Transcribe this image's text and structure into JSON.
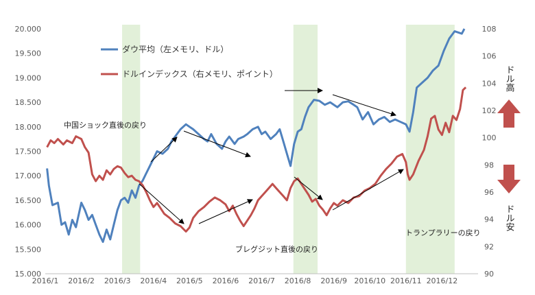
{
  "chart_data": {
    "type": "line",
    "x_labels": [
      "2016/1",
      "2016/2",
      "2016/3",
      "2016/4",
      "2016/5",
      "2016/6",
      "2016/7",
      "2016/8",
      "2016/9",
      "2016/10",
      "2016/11",
      "2016/12"
    ],
    "y_left": {
      "ticks": [
        "15.000",
        "15.500",
        "16.000",
        "16.500",
        "17.000",
        "17.500",
        "18.000",
        "18.500",
        "19.000",
        "19.500",
        "20.000"
      ],
      "min": 15000,
      "max": 20000
    },
    "y_right": {
      "ticks": [
        "90",
        "92",
        "94",
        "96",
        "98",
        "100",
        "102",
        "104",
        "106",
        "108"
      ],
      "min": 90,
      "max": 108
    },
    "highlight_bands": [
      {
        "from": 2.13,
        "to": 2.63
      },
      {
        "from": 6.88,
        "to": 7.55
      },
      {
        "from": 10.0,
        "to": 11.35
      }
    ],
    "series": [
      {
        "name": "ダウ平均（左メモリ、ドル）",
        "axis": "left",
        "color": "#4f81bd",
        "points": [
          [
            0.05,
            17150
          ],
          [
            0.1,
            16800
          ],
          [
            0.2,
            16400
          ],
          [
            0.35,
            16450
          ],
          [
            0.45,
            16000
          ],
          [
            0.55,
            16050
          ],
          [
            0.65,
            15800
          ],
          [
            0.75,
            16100
          ],
          [
            0.85,
            15950
          ],
          [
            1.0,
            16450
          ],
          [
            1.1,
            16300
          ],
          [
            1.2,
            16100
          ],
          [
            1.3,
            16200
          ],
          [
            1.4,
            16000
          ],
          [
            1.5,
            15800
          ],
          [
            1.6,
            15650
          ],
          [
            1.7,
            15900
          ],
          [
            1.8,
            15700
          ],
          [
            1.9,
            16000
          ],
          [
            2.0,
            16300
          ],
          [
            2.1,
            16500
          ],
          [
            2.2,
            16550
          ],
          [
            2.3,
            16450
          ],
          [
            2.4,
            16700
          ],
          [
            2.5,
            16550
          ],
          [
            2.6,
            16800
          ],
          [
            2.7,
            16900
          ],
          [
            2.8,
            17050
          ],
          [
            2.9,
            17200
          ],
          [
            3.0,
            17350
          ],
          [
            3.1,
            17500
          ],
          [
            3.25,
            17450
          ],
          [
            3.4,
            17550
          ],
          [
            3.5,
            17700
          ],
          [
            3.6,
            17800
          ],
          [
            3.75,
            17950
          ],
          [
            3.9,
            18050
          ],
          [
            4.0,
            18000
          ],
          [
            4.1,
            17950
          ],
          [
            4.25,
            17850
          ],
          [
            4.4,
            17750
          ],
          [
            4.5,
            17700
          ],
          [
            4.6,
            17850
          ],
          [
            4.75,
            17650
          ],
          [
            4.9,
            17550
          ],
          [
            5.0,
            17700
          ],
          [
            5.1,
            17800
          ],
          [
            5.25,
            17650
          ],
          [
            5.35,
            17750
          ],
          [
            5.5,
            17800
          ],
          [
            5.6,
            17850
          ],
          [
            5.75,
            17950
          ],
          [
            5.9,
            18000
          ],
          [
            6.0,
            17850
          ],
          [
            6.1,
            17900
          ],
          [
            6.25,
            17750
          ],
          [
            6.4,
            17850
          ],
          [
            6.5,
            17950
          ],
          [
            6.6,
            17700
          ],
          [
            6.7,
            17450
          ],
          [
            6.8,
            17200
          ],
          [
            6.9,
            17650
          ],
          [
            7.0,
            17900
          ],
          [
            7.1,
            17950
          ],
          [
            7.2,
            18200
          ],
          [
            7.3,
            18400
          ],
          [
            7.45,
            18550
          ],
          [
            7.6,
            18530
          ],
          [
            7.75,
            18450
          ],
          [
            7.9,
            18500
          ],
          [
            8.0,
            18450
          ],
          [
            8.1,
            18400
          ],
          [
            8.25,
            18500
          ],
          [
            8.4,
            18520
          ],
          [
            8.55,
            18450
          ],
          [
            8.65,
            18400
          ],
          [
            8.8,
            18150
          ],
          [
            8.95,
            18300
          ],
          [
            9.1,
            18050
          ],
          [
            9.25,
            18150
          ],
          [
            9.4,
            18200
          ],
          [
            9.55,
            18100
          ],
          [
            9.7,
            18150
          ],
          [
            9.85,
            18100
          ],
          [
            10.0,
            18050
          ],
          [
            10.1,
            17900
          ],
          [
            10.2,
            18300
          ],
          [
            10.3,
            18800
          ],
          [
            10.45,
            18900
          ],
          [
            10.6,
            19000
          ],
          [
            10.75,
            19150
          ],
          [
            10.9,
            19250
          ],
          [
            11.05,
            19550
          ],
          [
            11.2,
            19800
          ],
          [
            11.35,
            19950
          ],
          [
            11.55,
            19900
          ],
          [
            11.62,
            20000
          ]
        ]
      },
      {
        "name": "ドルインデックス（右メモリ、ポイント）",
        "axis": "right",
        "color": "#c0504d",
        "points": [
          [
            0.05,
            99.3
          ],
          [
            0.15,
            99.8
          ],
          [
            0.25,
            99.6
          ],
          [
            0.35,
            99.9
          ],
          [
            0.5,
            99.5
          ],
          [
            0.6,
            99.8
          ],
          [
            0.75,
            99.6
          ],
          [
            0.85,
            100.1
          ],
          [
            1.0,
            99.9
          ],
          [
            1.1,
            99.3
          ],
          [
            1.2,
            98.9
          ],
          [
            1.3,
            97.3
          ],
          [
            1.4,
            96.8
          ],
          [
            1.5,
            97.2
          ],
          [
            1.6,
            96.9
          ],
          [
            1.7,
            97.6
          ],
          [
            1.8,
            97.3
          ],
          [
            1.9,
            97.7
          ],
          [
            2.0,
            97.9
          ],
          [
            2.1,
            97.8
          ],
          [
            2.2,
            97.4
          ],
          [
            2.3,
            97.1
          ],
          [
            2.4,
            97.2
          ],
          [
            2.5,
            96.9
          ],
          [
            2.6,
            96.8
          ],
          [
            2.7,
            96.5
          ],
          [
            2.8,
            96.0
          ],
          [
            2.9,
            95.4
          ],
          [
            3.0,
            94.9
          ],
          [
            3.1,
            95.2
          ],
          [
            3.2,
            94.8
          ],
          [
            3.3,
            94.4
          ],
          [
            3.45,
            94.1
          ],
          [
            3.6,
            93.7
          ],
          [
            3.75,
            93.5
          ],
          [
            3.9,
            93.1
          ],
          [
            4.0,
            93.4
          ],
          [
            4.1,
            94.1
          ],
          [
            4.25,
            94.6
          ],
          [
            4.4,
            94.9
          ],
          [
            4.55,
            95.3
          ],
          [
            4.7,
            95.6
          ],
          [
            4.85,
            95.4
          ],
          [
            5.0,
            95.1
          ],
          [
            5.1,
            94.6
          ],
          [
            5.2,
            95.0
          ],
          [
            5.3,
            94.4
          ],
          [
            5.4,
            93.9
          ],
          [
            5.5,
            93.5
          ],
          [
            5.6,
            93.9
          ],
          [
            5.7,
            94.3
          ],
          [
            5.8,
            94.8
          ],
          [
            5.9,
            95.4
          ],
          [
            6.0,
            95.7
          ],
          [
            6.1,
            96.0
          ],
          [
            6.2,
            96.3
          ],
          [
            6.3,
            96.6
          ],
          [
            6.4,
            96.3
          ],
          [
            6.5,
            96.0
          ],
          [
            6.6,
            95.7
          ],
          [
            6.7,
            95.4
          ],
          [
            6.8,
            96.3
          ],
          [
            6.9,
            96.8
          ],
          [
            7.0,
            97.0
          ],
          [
            7.1,
            96.6
          ],
          [
            7.2,
            96.2
          ],
          [
            7.3,
            95.8
          ],
          [
            7.4,
            95.3
          ],
          [
            7.5,
            95.5
          ],
          [
            7.6,
            95.0
          ],
          [
            7.7,
            94.7
          ],
          [
            7.8,
            94.3
          ],
          [
            7.9,
            94.8
          ],
          [
            8.0,
            95.2
          ],
          [
            8.1,
            95.0
          ],
          [
            8.25,
            95.4
          ],
          [
            8.4,
            95.2
          ],
          [
            8.55,
            95.6
          ],
          [
            8.7,
            95.7
          ],
          [
            8.85,
            96.1
          ],
          [
            9.0,
            96.3
          ],
          [
            9.15,
            96.6
          ],
          [
            9.3,
            97.2
          ],
          [
            9.45,
            97.7
          ],
          [
            9.6,
            98.1
          ],
          [
            9.75,
            98.6
          ],
          [
            9.9,
            98.8
          ],
          [
            10.0,
            98.2
          ],
          [
            10.05,
            97.3
          ],
          [
            10.1,
            96.9
          ],
          [
            10.2,
            97.3
          ],
          [
            10.35,
            98.3
          ],
          [
            10.5,
            99.1
          ],
          [
            10.6,
            100.1
          ],
          [
            10.7,
            101.4
          ],
          [
            10.8,
            101.6
          ],
          [
            10.9,
            100.6
          ],
          [
            11.0,
            100.2
          ],
          [
            11.1,
            101.1
          ],
          [
            11.2,
            100.4
          ],
          [
            11.3,
            101.6
          ],
          [
            11.4,
            101.3
          ],
          [
            11.5,
            102.1
          ],
          [
            11.58,
            103.5
          ],
          [
            11.66,
            103.7
          ]
        ]
      }
    ]
  },
  "annotations": {
    "china_shock": "中国ショック直後の戻り",
    "brexit": "ブレグジット直後の戻り",
    "trump_rally": "トランプラリーの戻り"
  },
  "side_labels": {
    "dollar_high": "ドル高",
    "dollar_low": "ドル安"
  },
  "colors": {
    "band": "#e2f0d9",
    "arrow_up": "#c0504d",
    "arrow_down": "#c0504d"
  }
}
